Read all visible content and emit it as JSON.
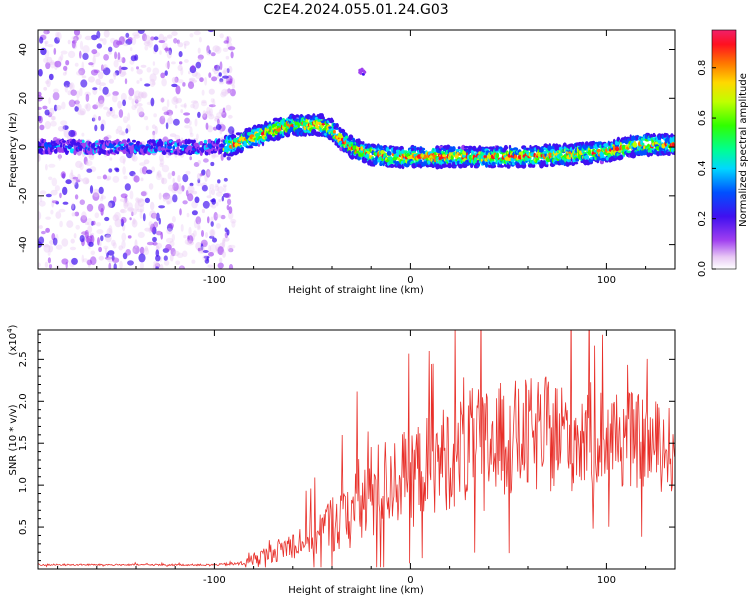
{
  "title": "C2E4.2024.055.01.24.G03",
  "chart_data": [
    {
      "type": "heatmap",
      "title": "C2E4.2024.055.01.24.G03",
      "xlabel": "Height of straight line (km)",
      "ylabel": "Frequency (Hz)",
      "xlim": [
        -190,
        135
      ],
      "ylim": [
        -50,
        48
      ],
      "x_ticks": [
        -100,
        0,
        100
      ],
      "y_ticks": [
        -40,
        -20,
        0,
        20,
        40
      ],
      "colorbar": {
        "label": "Normalized spectral amplitude",
        "range": [
          0,
          0.95
        ],
        "ticks": [
          0.0,
          0.2,
          0.4,
          0.6,
          0.8
        ]
      },
      "noise_region_x": [
        -190,
        -90
      ],
      "ridge": {
        "x": [
          -190,
          -150,
          -100,
          -90,
          -80,
          -70,
          -60,
          -50,
          -45,
          -40,
          -35,
          -30,
          -25,
          -20,
          -10,
          0,
          20,
          40,
          60,
          80,
          100,
          110,
          120,
          135
        ],
        "y": [
          0,
          0,
          0,
          1,
          4,
          7,
          9,
          9,
          9,
          7,
          3,
          0,
          -2,
          -3,
          -4,
          -4,
          -4,
          -4,
          -4,
          -3,
          -2,
          0,
          1,
          1
        ]
      },
      "ridge_peak_amplitude": 0.9
    },
    {
      "type": "line",
      "xlabel": "Height of straight line (km)",
      "ylabel": "SNR (10 * v/v)",
      "y_multiplier": "(x10",
      "y_multiplier_exp": "4",
      "y_multiplier_close": ")",
      "xlim": [
        -190,
        135
      ],
      "ylim": [
        0,
        2.85
      ],
      "x_ticks": [
        -100,
        0,
        100
      ],
      "y_ticks": [
        0.5,
        1.0,
        1.5,
        2.0,
        2.5
      ],
      "y_tick_labels": [
        "0.5",
        "1.0",
        "1.5",
        "2.0",
        "2.5"
      ],
      "color": "#e8302a",
      "series": [
        {
          "x": [
            -190,
            -100,
            -90,
            -85,
            -80,
            -70,
            -60,
            -50,
            -40,
            -30,
            -25,
            -20,
            -10,
            0,
            10,
            20,
            30,
            40,
            50,
            60,
            70,
            80,
            90,
            100,
            110,
            120,
            130,
            135
          ],
          "values": [
            0.05,
            0.05,
            0.06,
            0.07,
            0.12,
            0.2,
            0.3,
            0.4,
            0.55,
            0.7,
            0.8,
            0.9,
            1.05,
            1.15,
            1.25,
            1.35,
            1.45,
            1.5,
            1.55,
            1.58,
            1.6,
            1.6,
            1.6,
            1.58,
            1.55,
            1.5,
            1.45,
            1.4
          ],
          "noise_amplitude": [
            0.01,
            0.01,
            0.02,
            0.03,
            0.08,
            0.12,
            0.18,
            0.25,
            0.35,
            0.5,
            0.6,
            0.6,
            0.55,
            0.55,
            0.6,
            0.65,
            0.7,
            0.7,
            0.7,
            0.7,
            0.7,
            0.7,
            0.65,
            0.6,
            0.6,
            0.55,
            0.55,
            0.5
          ]
        }
      ]
    }
  ]
}
